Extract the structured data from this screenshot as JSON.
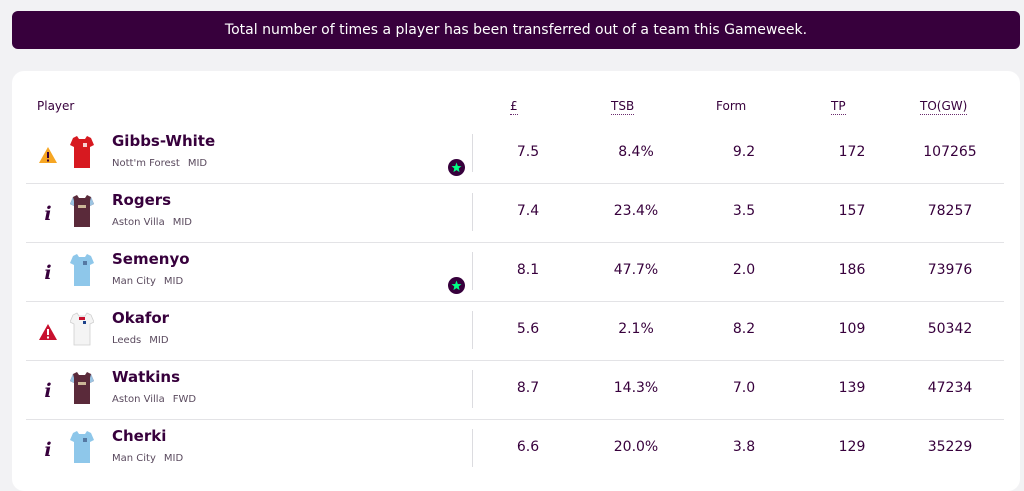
{
  "banner": {
    "text": "Total number of times a player has been transferred out of a team this Gameweek."
  },
  "columns": {
    "player": "Player",
    "price": "£",
    "tsb": "TSB",
    "form": "Form",
    "tp": "TP",
    "to": "TO(GW)"
  },
  "colors": {
    "primary": "#37003c",
    "star_accent": "#00ff85",
    "warning_orange": "#f6a623",
    "alert_red": "#c8102e"
  },
  "players": [
    {
      "name": "Gibbs-White",
      "team": "Nott'm Forest",
      "pos": "MID",
      "price": "7.5",
      "tsb": "8.4%",
      "form": "9.2",
      "tp": "172",
      "to": "107265",
      "status_icon": "warning-icon",
      "shirt": "forest-shirt-icon",
      "star": true
    },
    {
      "name": "Rogers",
      "team": "Aston Villa",
      "pos": "MID",
      "price": "7.4",
      "tsb": "23.4%",
      "form": "3.5",
      "tp": "157",
      "to": "78257",
      "status_icon": "info-icon",
      "shirt": "villa-shirt-icon",
      "star": false
    },
    {
      "name": "Semenyo",
      "team": "Man City",
      "pos": "MID",
      "price": "8.1",
      "tsb": "47.7%",
      "form": "2.0",
      "tp": "186",
      "to": "73976",
      "status_icon": "info-icon",
      "shirt": "city-shirt-icon",
      "star": true
    },
    {
      "name": "Okafor",
      "team": "Leeds",
      "pos": "MID",
      "price": "5.6",
      "tsb": "2.1%",
      "form": "8.2",
      "tp": "109",
      "to": "50342",
      "status_icon": "alert-icon",
      "shirt": "leeds-shirt-icon",
      "star": false
    },
    {
      "name": "Watkins",
      "team": "Aston Villa",
      "pos": "FWD",
      "price": "8.7",
      "tsb": "14.3%",
      "form": "7.0",
      "tp": "139",
      "to": "47234",
      "status_icon": "info-icon",
      "shirt": "villa-shirt-icon",
      "star": false
    },
    {
      "name": "Cherki",
      "team": "Man City",
      "pos": "MID",
      "price": "6.6",
      "tsb": "20.0%",
      "form": "3.8",
      "tp": "129",
      "to": "35229",
      "status_icon": "info-icon",
      "shirt": "city-shirt-icon",
      "star": false
    }
  ]
}
